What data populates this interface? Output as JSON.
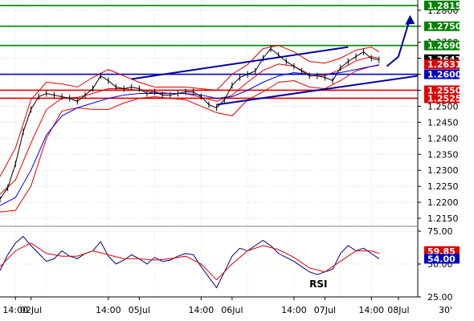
{
  "chart_data": {
    "type": "line",
    "instrument_note": "",
    "timeframe_label": "30'",
    "price_panel": {
      "ylim": [
        1.2125,
        1.2832
      ],
      "axis_ticks": [
        1.28,
        1.275,
        1.27,
        1.265,
        1.26,
        1.255,
        1.25,
        1.245,
        1.24,
        1.235,
        1.23,
        1.225,
        1.22,
        1.215
      ],
      "axis_tick_labels": [
        "1.2800",
        "1.2750",
        "1.2700",
        "1.2650",
        "1.2600",
        "1.2550",
        "1.2500",
        "1.2450",
        "1.2400",
        "1.2350",
        "1.2300",
        "1.2250",
        "1.2200",
        "1.2150"
      ],
      "horizontal_levels": [
        {
          "value": 1.2815,
          "label": "1.2815",
          "color": "#008000"
        },
        {
          "value": 1.275,
          "label": "1.2750",
          "color": "#008000"
        },
        {
          "value": 1.269,
          "label": "1.2690",
          "color": "#008000"
        },
        {
          "value": 1.26,
          "label": "1.2600",
          "color": "#0000c0"
        },
        {
          "value": 1.255,
          "label": "1.2550",
          "color": "#e00000"
        },
        {
          "value": 1.2525,
          "label": "1.2525",
          "color": "#e00000"
        }
      ],
      "current_price_tags": [
        {
          "value": 1.2647,
          "label": "1.2647",
          "color": "#000000"
        },
        {
          "value": 1.2631,
          "label": "1.2631",
          "color": "#e00000"
        }
      ],
      "trend_channel": {
        "upper": {
          "from": {
            "x": 34,
            "y": 1.2585
          },
          "to": {
            "x": 90,
            "y": 1.2685
          }
        },
        "lower": {
          "from": {
            "x": 56,
            "y": 1.2505
          },
          "to": {
            "x": 108,
            "y": 1.2595
          }
        },
        "color": "#0000a0"
      },
      "forecast_arrow": {
        "points": [
          {
            "x": 100,
            "y": 1.2625
          },
          {
            "x": 103,
            "y": 1.2655
          },
          {
            "x": 106,
            "y": 1.2775
          }
        ],
        "color": "#0000a0"
      },
      "series": [
        {
          "name": "",
          "role": "close",
          "color": "#000000",
          "x": [
            0,
            2,
            4,
            6,
            8,
            10,
            12,
            14,
            16,
            18,
            20,
            22,
            24,
            26,
            28,
            30,
            32,
            34,
            36,
            38,
            40,
            42,
            44,
            46,
            48,
            50,
            52,
            54,
            56,
            58,
            60,
            62,
            64,
            66,
            68,
            70,
            72,
            74,
            76,
            78,
            80,
            82,
            84,
            86,
            88,
            90,
            92,
            94,
            96,
            98
          ],
          "y": [
            1.221,
            1.2245,
            1.232,
            1.242,
            1.249,
            1.253,
            1.254,
            1.2535,
            1.253,
            1.2525,
            1.2515,
            1.2535,
            1.2555,
            1.2595,
            1.258,
            1.256,
            1.2555,
            1.256,
            1.2555,
            1.254,
            1.2545,
            1.2535,
            1.2535,
            1.254,
            1.2545,
            1.2545,
            1.253,
            1.2505,
            1.2495,
            1.252,
            1.2565,
            1.259,
            1.26,
            1.261,
            1.265,
            1.268,
            1.266,
            1.264,
            1.2625,
            1.261,
            1.2595,
            1.2595,
            1.259,
            1.258,
            1.262,
            1.264,
            1.2655,
            1.267,
            1.265,
            1.2645
          ]
        },
        {
          "name": "",
          "role": "bollinger_upper",
          "color": "#e00000",
          "x": [
            0,
            4,
            8,
            12,
            16,
            20,
            24,
            28,
            32,
            36,
            40,
            44,
            48,
            52,
            56,
            60,
            64,
            68,
            72,
            76,
            80,
            84,
            88,
            92,
            96,
            98
          ],
          "y": [
            1.228,
            1.237,
            1.252,
            1.2575,
            1.257,
            1.256,
            1.259,
            1.2615,
            1.2595,
            1.2575,
            1.256,
            1.256,
            1.256,
            1.2555,
            1.255,
            1.26,
            1.263,
            1.268,
            1.269,
            1.267,
            1.264,
            1.2635,
            1.265,
            1.2675,
            1.2685,
            1.267
          ]
        },
        {
          "name": "",
          "role": "bollinger_lower",
          "color": "#e00000",
          "x": [
            0,
            4,
            8,
            12,
            16,
            20,
            24,
            28,
            32,
            36,
            40,
            44,
            48,
            52,
            56,
            60,
            64,
            68,
            72,
            76,
            80,
            84,
            88,
            92,
            96,
            98
          ],
          "y": [
            1.217,
            1.2175,
            1.225,
            1.24,
            1.2485,
            1.2495,
            1.249,
            1.249,
            1.251,
            1.2525,
            1.253,
            1.2525,
            1.252,
            1.25,
            1.248,
            1.247,
            1.252,
            1.2545,
            1.2575,
            1.258,
            1.256,
            1.2555,
            1.258,
            1.261,
            1.2625,
            1.263
          ]
        },
        {
          "name": "",
          "role": "bollinger_middle",
          "color": "#e00000",
          "x": [
            0,
            4,
            8,
            12,
            16,
            20,
            24,
            28,
            32,
            36,
            40,
            44,
            48,
            52,
            56,
            60,
            64,
            68,
            72,
            76,
            80,
            84,
            88,
            92,
            96,
            98
          ],
          "y": [
            1.2225,
            1.227,
            1.2385,
            1.249,
            1.2525,
            1.2528,
            1.254,
            1.2555,
            1.2555,
            1.255,
            1.2545,
            1.254,
            1.254,
            1.2528,
            1.2515,
            1.2535,
            1.2575,
            1.2612,
            1.2632,
            1.2625,
            1.26,
            1.2595,
            1.2615,
            1.2642,
            1.2655,
            1.265
          ]
        },
        {
          "name": "",
          "role": "moving_average",
          "color": "#0000ff",
          "x": [
            0,
            4,
            8,
            12,
            16,
            20,
            24,
            28,
            32,
            36,
            40,
            44,
            48,
            52,
            56,
            60,
            64,
            68,
            72,
            76,
            80,
            84,
            88,
            92,
            96,
            98
          ],
          "y": [
            1.219,
            1.2215,
            1.23,
            1.241,
            1.247,
            1.2495,
            1.251,
            1.2525,
            1.2535,
            1.254,
            1.254,
            1.254,
            1.254,
            1.2535,
            1.2525,
            1.253,
            1.255,
            1.2575,
            1.2595,
            1.2605,
            1.26,
            1.26,
            1.2605,
            1.2615,
            1.2625,
            1.2628
          ]
        }
      ]
    },
    "rsi_panel": {
      "label": "RSI",
      "ylim": [
        25,
        75
      ],
      "axis_ticks": [
        75,
        50,
        25
      ],
      "axis_tick_labels": [
        "75.00",
        "50.00",
        "25.00"
      ],
      "current_tags": [
        {
          "value": 59.85,
          "label": "59.85",
          "color": "#e00000"
        },
        {
          "value": 54.0,
          "label": "54.00",
          "color": "#0000c0"
        }
      ],
      "series": [
        {
          "name": "RSI",
          "role": "rsi",
          "color": "#000080",
          "x": [
            0,
            2,
            4,
            6,
            8,
            10,
            12,
            14,
            16,
            18,
            20,
            22,
            24,
            26,
            28,
            30,
            32,
            34,
            36,
            38,
            40,
            42,
            44,
            46,
            48,
            50,
            52,
            54,
            56,
            58,
            60,
            62,
            64,
            66,
            68,
            70,
            72,
            74,
            76,
            78,
            80,
            82,
            84,
            86,
            88,
            90,
            92,
            94,
            96,
            98
          ],
          "y": [
            45,
            57,
            66,
            71,
            64,
            58,
            52,
            54,
            60,
            56,
            54,
            58,
            60,
            67,
            56,
            50,
            53,
            57,
            54,
            50,
            55,
            52,
            53,
            56,
            58,
            57,
            48,
            40,
            32,
            44,
            56,
            62,
            60,
            64,
            68,
            64,
            58,
            55,
            52,
            48,
            44,
            42,
            44,
            46,
            58,
            64,
            60,
            62,
            58,
            54
          ]
        },
        {
          "name": "",
          "role": "rsi_signal",
          "color": "#e00000",
          "x": [
            0,
            4,
            8,
            12,
            16,
            20,
            24,
            28,
            32,
            36,
            40,
            44,
            48,
            52,
            56,
            60,
            64,
            68,
            72,
            76,
            80,
            84,
            88,
            92,
            96,
            98
          ],
          "y": [
            48,
            60,
            66,
            58,
            56,
            56,
            60,
            57,
            54,
            54,
            53,
            54,
            56,
            50,
            38,
            50,
            60,
            64,
            61,
            55,
            47,
            44,
            52,
            60,
            60,
            58
          ]
        }
      ]
    },
    "x_axis": {
      "range": [
        0,
        108
      ],
      "ticks": [
        4,
        12,
        28,
        40,
        52,
        64,
        76,
        88,
        96
      ],
      "tick_labels": [
        "14:00",
        "02Jul",
        "14:00",
        "05Jul",
        "14:00",
        "06Jul",
        "14:00",
        "07Jul",
        "14:00",
        "08Jul"
      ],
      "tick_positions": [
        4,
        8,
        28,
        36,
        52,
        60,
        76,
        84,
        96,
        103
      ]
    }
  }
}
